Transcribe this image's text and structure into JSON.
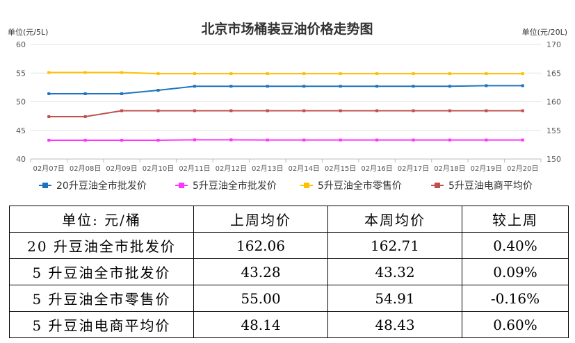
{
  "chart_data": {
    "type": "line",
    "title": "北京市场桶装豆油价格走势图",
    "y_left_unit": "单位(元/5L)",
    "y_right_unit": "单位(元/20L)",
    "categories": [
      "02月07日",
      "02月08日",
      "02月09日",
      "02月10日",
      "02月11日",
      "02月12日",
      "02月13日",
      "02月14日",
      "02月15日",
      "02月16日",
      "02月17日",
      "02月18日",
      "02月19日",
      "02月20日"
    ],
    "y_left_lim": [
      40,
      60
    ],
    "y_left_ticks": [
      40,
      45,
      50,
      55,
      60
    ],
    "y_right_lim": [
      150,
      170
    ],
    "y_right_ticks": [
      150,
      155,
      160,
      165,
      170
    ],
    "grid": true,
    "legend_position": "bottom",
    "series": [
      {
        "name": "20升豆油全市批发价",
        "axis": "right",
        "color": "#1e73be",
        "values": [
          161.4,
          161.4,
          161.4,
          162.0,
          162.7,
          162.7,
          162.7,
          162.7,
          162.7,
          162.7,
          162.7,
          162.7,
          162.8,
          162.8
        ]
      },
      {
        "name": "5升豆油全市批发价",
        "axis": "left",
        "color": "#ff33ff",
        "values": [
          43.28,
          43.28,
          43.28,
          43.28,
          43.35,
          43.35,
          43.32,
          43.32,
          43.32,
          43.32,
          43.32,
          43.32,
          43.32,
          43.32
        ]
      },
      {
        "name": "5升豆油全市零售价",
        "axis": "left",
        "color": "#ffc000",
        "values": [
          55.1,
          55.1,
          55.1,
          54.9,
          54.9,
          54.9,
          54.9,
          54.9,
          54.9,
          54.9,
          54.9,
          54.9,
          54.9,
          54.9
        ]
      },
      {
        "name": "5升豆油电商平均价",
        "axis": "left",
        "color": "#c0504d",
        "values": [
          47.4,
          47.4,
          48.43,
          48.43,
          48.43,
          48.43,
          48.43,
          48.43,
          48.43,
          48.43,
          48.43,
          48.43,
          48.43,
          48.43
        ]
      }
    ]
  },
  "table": {
    "header": [
      "单位: 元/桶",
      "上周均价",
      "本周均价",
      "较上周"
    ],
    "rows": [
      [
        "20 升豆油全市批发价",
        "162.06",
        "162.71",
        "0.40%"
      ],
      [
        "5 升豆油全市批发价",
        "43.28",
        "43.32",
        "0.09%"
      ],
      [
        "5 升豆油全市零售价",
        "55.00",
        "54.91",
        "-0.16%"
      ],
      [
        "5 升豆油电商平均价",
        "48.14",
        "48.43",
        "0.60%"
      ]
    ]
  }
}
